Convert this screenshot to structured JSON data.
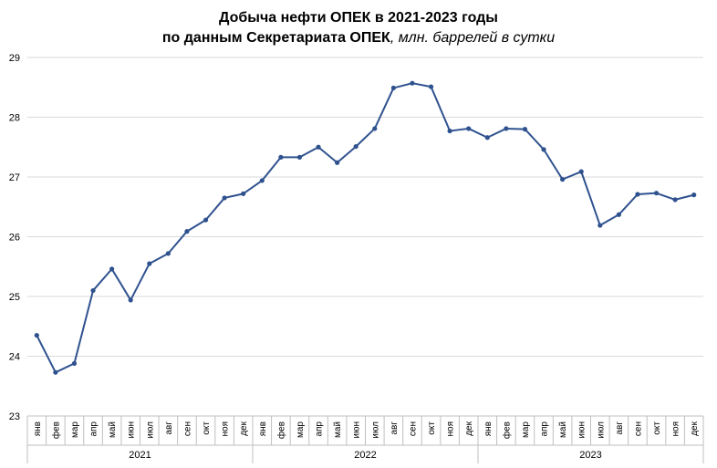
{
  "chart_data": {
    "type": "line",
    "title_line1": "Добыча нефти ОПЕК в 2021-2023 годы",
    "title_line2_bold": "по данным Секретариата ОПЕК",
    "title_line2_italic": ", млн. баррелей в сутки",
    "ylim": [
      23,
      29
    ],
    "yticks": [
      23,
      24,
      25,
      26,
      27,
      28,
      29
    ],
    "grid": true,
    "legend": "none",
    "line_color": "#2F528F",
    "months": [
      "янв",
      "фев",
      "мар",
      "апр",
      "май",
      "июн",
      "июл",
      "авг",
      "сен",
      "окт",
      "ноя",
      "дек"
    ],
    "years": [
      "2021",
      "2022",
      "2023"
    ],
    "series": [
      {
        "values": [
          24.35,
          23.73,
          23.88,
          25.1,
          25.46,
          24.94,
          25.55,
          25.72,
          26.09,
          26.28,
          26.65,
          26.72,
          26.94,
          27.33,
          27.33,
          27.5,
          27.24,
          27.51,
          27.81,
          28.49,
          28.57,
          28.51,
          27.77,
          27.81,
          27.66,
          27.81,
          27.8,
          27.46,
          26.96,
          27.09,
          26.19,
          26.37,
          26.71,
          26.73,
          26.62,
          26.7
        ]
      }
    ]
  }
}
